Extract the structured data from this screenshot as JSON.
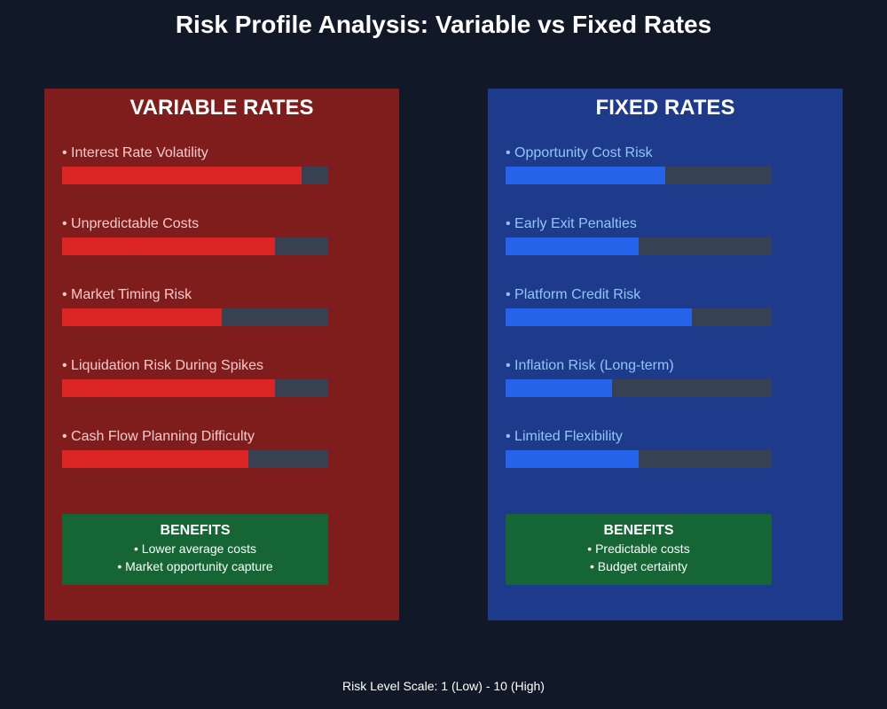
{
  "chart_data": {
    "type": "bar",
    "title": "Risk Profile Analysis: Variable vs Fixed Rates",
    "scale_note": "Risk Level Scale: 1 (Low) - 10 (High)",
    "xlim": [
      0,
      10
    ],
    "panels": [
      {
        "title": "VARIABLE RATES",
        "color": "#dc2626",
        "bg": "#7f1d1d",
        "items": [
          {
            "label": "• Interest Rate Volatility",
            "value": 9
          },
          {
            "label": "• Unpredictable Costs",
            "value": 8
          },
          {
            "label": "• Market Timing Risk",
            "value": 6
          },
          {
            "label": "• Liquidation Risk During Spikes",
            "value": 8
          },
          {
            "label": "• Cash Flow Planning Difficulty",
            "value": 7
          }
        ],
        "benefits": {
          "title": "BENEFITS",
          "lines": [
            "• Lower average costs",
            "• Market opportunity capture"
          ]
        }
      },
      {
        "title": "FIXED RATES",
        "color": "#2563eb",
        "bg": "#1e3a8a",
        "items": [
          {
            "label": "• Opportunity Cost Risk",
            "value": 6
          },
          {
            "label": "• Early Exit Penalties",
            "value": 5
          },
          {
            "label": "• Platform Credit Risk",
            "value": 7
          },
          {
            "label": "• Inflation Risk (Long-term)",
            "value": 4
          },
          {
            "label": "• Limited Flexibility",
            "value": 5
          }
        ],
        "benefits": {
          "title": "BENEFITS",
          "lines": [
            "• Predictable costs",
            "• Budget certainty"
          ]
        }
      }
    ]
  }
}
